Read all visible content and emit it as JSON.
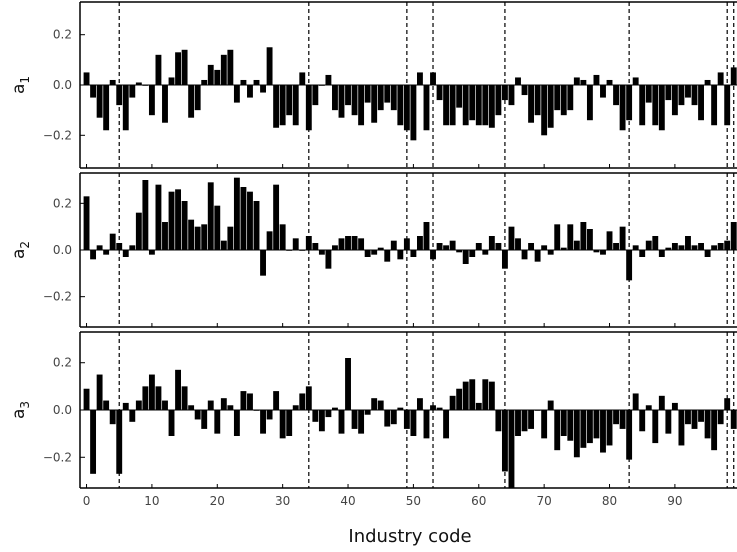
{
  "chart_data": {
    "type": "bar",
    "xlabel": "Industry code",
    "xlim": [
      -1,
      99.5
    ],
    "x_ticks": [
      0,
      10,
      20,
      30,
      40,
      50,
      60,
      70,
      80,
      90
    ],
    "y_ticks": [
      -0.2,
      0.0,
      0.2
    ],
    "y_tick_labels": [
      "−0.2",
      "0.0",
      "0.2"
    ],
    "ylim": [
      -0.33,
      0.33
    ],
    "grid": false,
    "bar_color": "#000000",
    "dashed_lines": [
      5,
      34,
      49,
      53,
      64,
      83,
      98,
      99
    ],
    "panels": [
      {
        "ylabel": "a",
        "ylabel_sub": "1",
        "x": [
          0,
          1,
          2,
          3,
          4,
          5,
          6,
          7,
          8,
          9,
          10,
          11,
          12,
          13,
          14,
          15,
          16,
          17,
          18,
          19,
          20,
          21,
          22,
          23,
          24,
          25,
          26,
          27,
          28,
          29,
          30,
          31,
          32,
          33,
          34,
          35,
          36,
          37,
          38,
          39,
          40,
          41,
          42,
          43,
          44,
          45,
          46,
          47,
          48,
          49,
          50,
          51,
          52,
          53,
          54,
          55,
          56,
          57,
          58,
          59,
          60,
          61,
          62,
          63,
          64,
          65,
          66,
          67,
          68,
          69,
          70,
          71,
          72,
          73,
          74,
          75,
          76,
          77,
          78,
          79,
          80,
          81,
          82,
          83,
          84,
          85,
          86,
          87,
          88,
          89,
          90,
          91,
          92,
          93,
          94,
          95,
          96,
          97,
          98,
          99
        ],
        "values": [
          0.05,
          -0.05,
          -0.13,
          -0.18,
          0.02,
          -0.08,
          -0.18,
          -0.05,
          0.01,
          0.0,
          -0.12,
          0.12,
          -0.15,
          0.03,
          0.13,
          0.14,
          -0.13,
          -0.1,
          0.02,
          0.08,
          0.06,
          0.12,
          0.14,
          -0.07,
          0.02,
          -0.05,
          0.02,
          -0.03,
          0.15,
          -0.17,
          -0.16,
          -0.12,
          -0.16,
          0.05,
          -0.18,
          -0.08,
          0.0,
          0.04,
          -0.1,
          -0.13,
          -0.08,
          -0.12,
          -0.16,
          -0.07,
          -0.15,
          -0.1,
          -0.07,
          -0.1,
          -0.16,
          -0.18,
          -0.22,
          0.05,
          -0.18,
          0.05,
          -0.06,
          -0.16,
          -0.16,
          -0.09,
          -0.16,
          -0.14,
          -0.16,
          -0.16,
          -0.17,
          -0.12,
          -0.06,
          -0.08,
          0.03,
          -0.04,
          -0.15,
          -0.12,
          -0.2,
          -0.17,
          -0.1,
          -0.12,
          -0.1,
          0.03,
          0.02,
          -0.14,
          0.04,
          -0.05,
          0.02,
          -0.08,
          -0.18,
          -0.14,
          0.03,
          -0.16,
          -0.07,
          -0.16,
          -0.18,
          -0.06,
          -0.12,
          -0.08,
          -0.05,
          -0.08,
          -0.14,
          0.02,
          -0.16,
          0.05,
          -0.16,
          0.07
        ]
      },
      {
        "ylabel": "a",
        "ylabel_sub": "2",
        "x": [
          0,
          1,
          2,
          3,
          4,
          5,
          6,
          7,
          8,
          9,
          10,
          11,
          12,
          13,
          14,
          15,
          16,
          17,
          18,
          19,
          20,
          21,
          22,
          23,
          24,
          25,
          26,
          27,
          28,
          29,
          30,
          31,
          32,
          33,
          34,
          35,
          36,
          37,
          38,
          39,
          40,
          41,
          42,
          43,
          44,
          45,
          46,
          47,
          48,
          49,
          50,
          51,
          52,
          53,
          54,
          55,
          56,
          57,
          58,
          59,
          60,
          61,
          62,
          63,
          64,
          65,
          66,
          67,
          68,
          69,
          70,
          71,
          72,
          73,
          74,
          75,
          76,
          77,
          78,
          79,
          80,
          81,
          82,
          83,
          84,
          85,
          86,
          87,
          88,
          89,
          90,
          91,
          92,
          93,
          94,
          95,
          96,
          97,
          98,
          99
        ],
        "values": [
          0.23,
          -0.04,
          0.02,
          -0.02,
          0.07,
          0.03,
          -0.03,
          0.02,
          0.16,
          0.3,
          -0.02,
          0.28,
          0.12,
          0.25,
          0.26,
          0.21,
          0.13,
          0.1,
          0.11,
          0.29,
          0.19,
          0.04,
          0.1,
          0.31,
          0.27,
          0.25,
          0.21,
          -0.11,
          0.08,
          0.28,
          0.11,
          0.0,
          0.05,
          0.0,
          0.06,
          0.03,
          -0.02,
          -0.08,
          0.02,
          0.05,
          0.06,
          0.06,
          0.05,
          -0.03,
          -0.02,
          0.01,
          -0.05,
          0.04,
          -0.04,
          0.05,
          -0.03,
          0.06,
          0.12,
          -0.04,
          0.03,
          0.02,
          0.04,
          -0.01,
          -0.06,
          -0.03,
          0.03,
          -0.02,
          0.06,
          0.03,
          -0.08,
          0.1,
          0.05,
          -0.04,
          0.03,
          -0.05,
          0.02,
          -0.02,
          0.11,
          0.01,
          0.11,
          0.04,
          0.12,
          0.09,
          -0.01,
          -0.02,
          0.08,
          0.03,
          0.1,
          -0.13,
          0.02,
          -0.03,
          0.04,
          0.06,
          -0.03,
          0.01,
          0.03,
          0.02,
          0.06,
          0.02,
          0.03,
          -0.03,
          0.02,
          0.03,
          0.04,
          0.12
        ]
      },
      {
        "ylabel": "a",
        "ylabel_sub": "3",
        "x": [
          0,
          1,
          2,
          3,
          4,
          5,
          6,
          7,
          8,
          9,
          10,
          11,
          12,
          13,
          14,
          15,
          16,
          17,
          18,
          19,
          20,
          21,
          22,
          23,
          24,
          25,
          26,
          27,
          28,
          29,
          30,
          31,
          32,
          33,
          34,
          35,
          36,
          37,
          38,
          39,
          40,
          41,
          42,
          43,
          44,
          45,
          46,
          47,
          48,
          49,
          50,
          51,
          52,
          53,
          54,
          55,
          56,
          57,
          58,
          59,
          60,
          61,
          62,
          63,
          64,
          65,
          66,
          67,
          68,
          69,
          70,
          71,
          72,
          73,
          74,
          75,
          76,
          77,
          78,
          79,
          80,
          81,
          82,
          83,
          84,
          85,
          86,
          87,
          88,
          89,
          90,
          91,
          92,
          93,
          94,
          95,
          96,
          97,
          98,
          99
        ],
        "values": [
          0.09,
          -0.27,
          0.15,
          0.04,
          -0.06,
          -0.27,
          0.03,
          -0.05,
          0.04,
          0.1,
          0.15,
          0.1,
          0.04,
          -0.11,
          0.17,
          0.1,
          0.02,
          -0.04,
          -0.08,
          0.04,
          -0.1,
          0.05,
          0.02,
          -0.11,
          0.08,
          0.07,
          0.0,
          -0.1,
          -0.04,
          0.08,
          -0.12,
          -0.11,
          0.02,
          0.07,
          0.1,
          -0.05,
          -0.09,
          -0.03,
          0.01,
          -0.1,
          0.22,
          -0.08,
          -0.1,
          -0.02,
          0.05,
          0.04,
          -0.07,
          -0.06,
          0.01,
          -0.08,
          -0.11,
          0.05,
          -0.12,
          0.02,
          0.01,
          -0.12,
          0.06,
          0.09,
          0.12,
          0.13,
          0.03,
          0.13,
          0.12,
          -0.09,
          -0.26,
          -0.33,
          -0.11,
          -0.09,
          -0.08,
          0.0,
          -0.12,
          0.04,
          -0.17,
          -0.11,
          -0.13,
          -0.2,
          -0.16,
          -0.14,
          -0.12,
          -0.18,
          -0.15,
          -0.06,
          -0.08,
          -0.21,
          0.07,
          -0.09,
          0.02,
          -0.14,
          0.06,
          -0.1,
          0.03,
          -0.15,
          -0.06,
          -0.08,
          -0.05,
          -0.12,
          -0.17,
          -0.06,
          0.05,
          -0.08
        ]
      }
    ]
  }
}
